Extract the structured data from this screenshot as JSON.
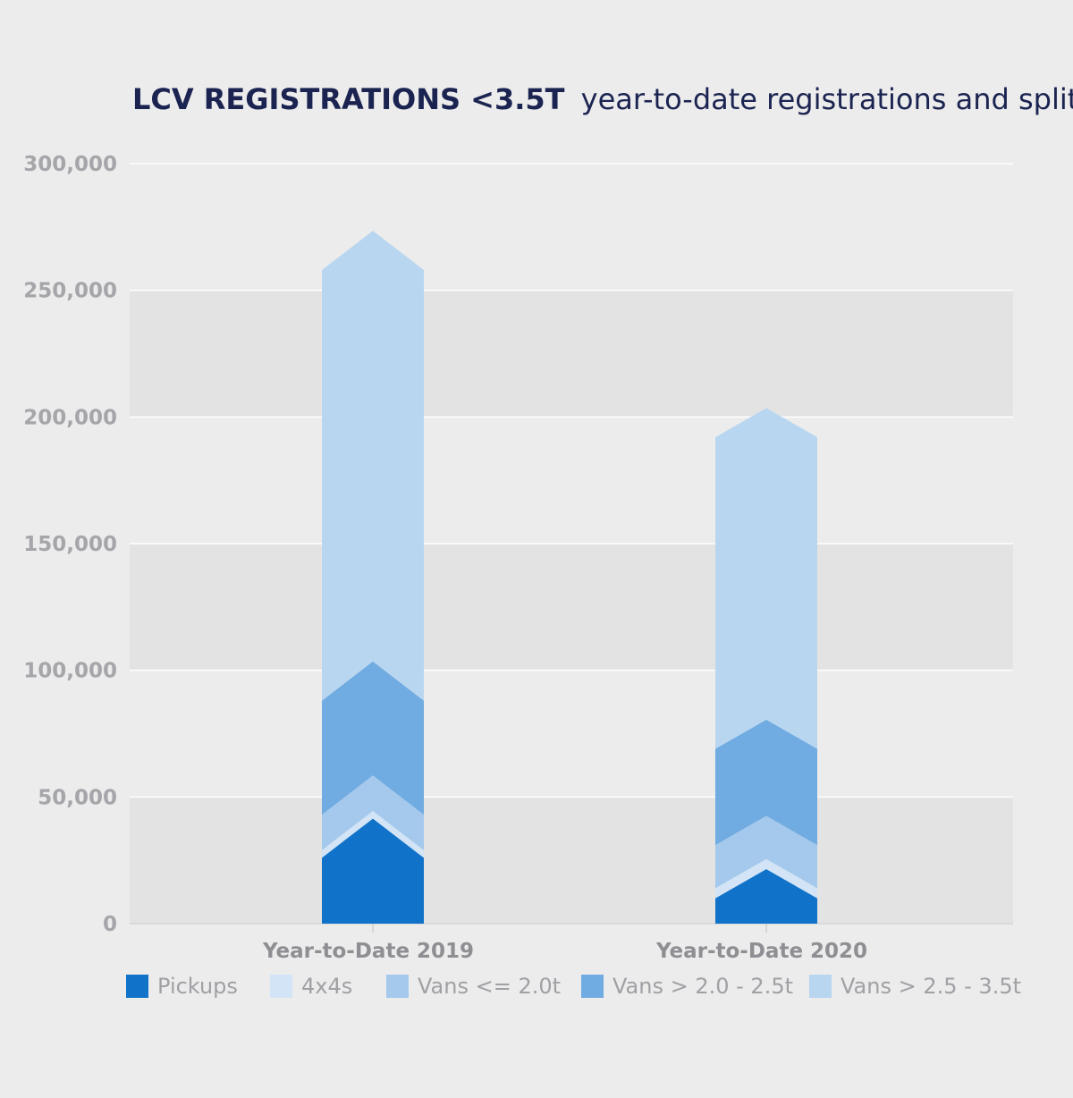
{
  "chart_data": {
    "type": "bar",
    "stacked": true,
    "title_bold": "LCV REGISTRATIONS <3.5T",
    "title_rest": "year-to-date registrations and split",
    "categories": [
      "Year-to-Date 2019",
      "Year-to-Date 2020"
    ],
    "series": [
      {
        "name": "Pickups",
        "color": "#1073c9",
        "values": [
          26000,
          10000
        ]
      },
      {
        "name": "4x4s",
        "color": "#d2e4f6",
        "values": [
          3000,
          4000
        ]
      },
      {
        "name": "Vans <= 2.0t",
        "color": "#a4c9ec",
        "values": [
          14000,
          17000
        ]
      },
      {
        "name": "Vans > 2.0 - 2.5t",
        "color": "#70abe1",
        "values": [
          45000,
          38000
        ]
      },
      {
        "name": "Vans > 2.5 - 3.5t",
        "color": "#b8d6f0",
        "values": [
          170000,
          123000
        ]
      }
    ],
    "ylim": [
      0,
      300000
    ],
    "yticks": [
      "0",
      "50,000",
      "100,000",
      "150,000",
      "200,000",
      "250,000",
      "300,000"
    ],
    "ytick_values": [
      0,
      50000,
      100000,
      150000,
      200000,
      250000,
      300000
    ],
    "grid": true,
    "legend_position": "bottom"
  }
}
